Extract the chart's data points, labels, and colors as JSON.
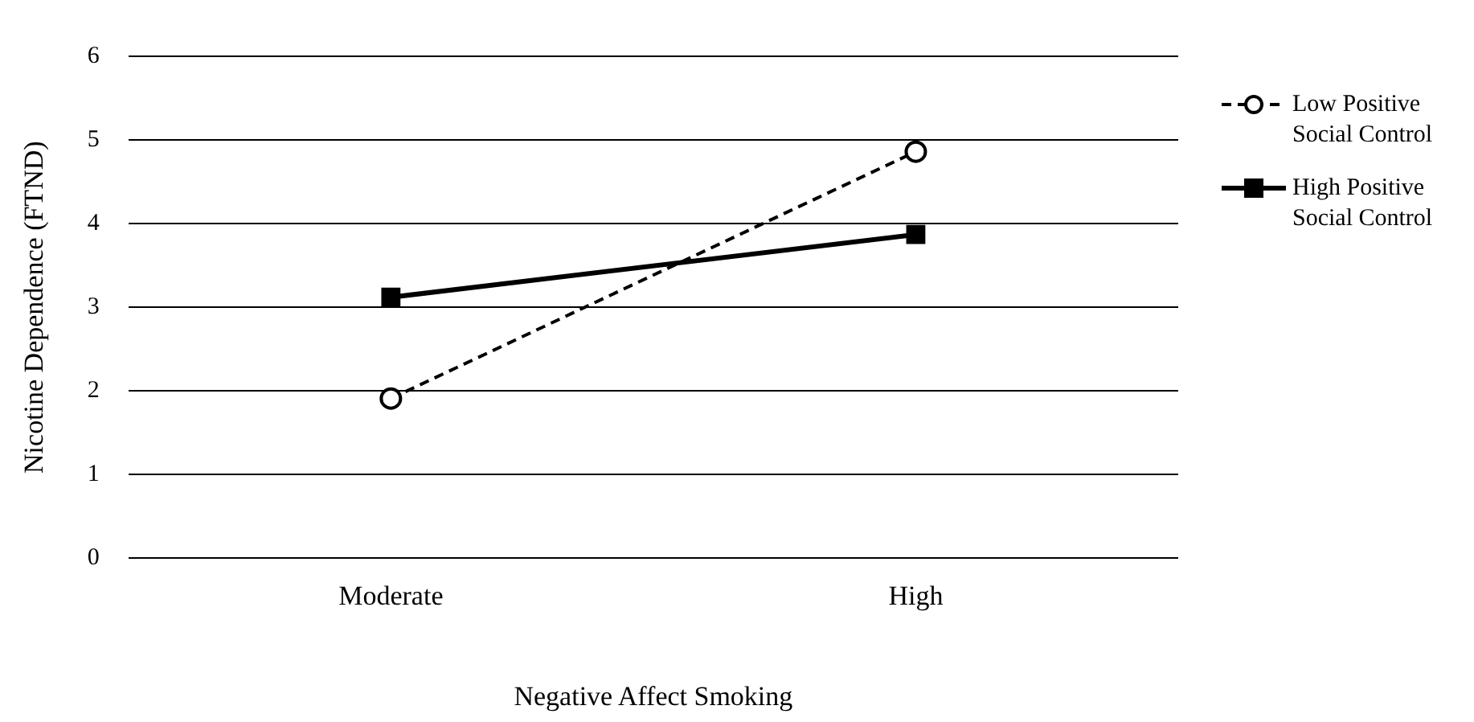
{
  "chart_data": {
    "type": "line",
    "xlabel": "Negative Affect Smoking",
    "ylabel": "Nicotine Dependence (FTND)",
    "categories": [
      "Moderate",
      "High"
    ],
    "series": [
      {
        "name": "Low Positive Social Control",
        "color": "#000000",
        "values": [
          1.91,
          4.86
        ],
        "line_style": "dashed",
        "marker": "circle"
      },
      {
        "name": "High Positive Social Control",
        "color": "#000000",
        "values": [
          3.12,
          3.87
        ],
        "line_style": "solid",
        "marker": "square"
      }
    ],
    "ylim": [
      0,
      6
    ],
    "yticks": [
      0,
      1,
      2,
      3,
      4,
      5,
      6
    ],
    "grid": "y",
    "legend": "right"
  }
}
